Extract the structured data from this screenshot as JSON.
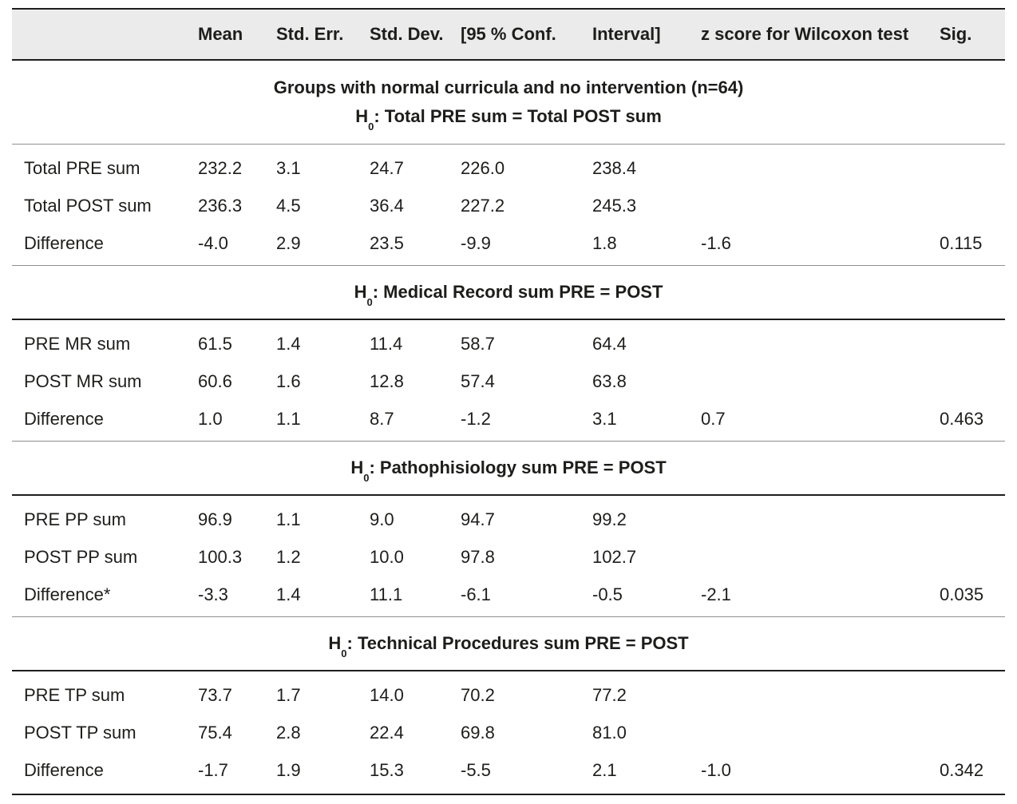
{
  "colors": {
    "header_bg": "#ebebeb",
    "text": "#1d1d1b",
    "rule_gray": "#8f8f8f",
    "rule_black": "#1d1d1b"
  },
  "table": {
    "header": {
      "columns": [
        "Mean",
        "Std. Err.",
        "Std. Dev.",
        "[95 % Conf.",
        "Interval]",
        "z score for Wilcoxon test",
        "Sig."
      ]
    },
    "sections": [
      {
        "group_title": "Groups with normal curricula and no intervention (n=64)",
        "hypothesis": {
          "base": "H",
          "sub": "0",
          "rest": ": Total PRE sum = Total POST sum"
        },
        "rows": [
          {
            "label": "Total PRE sum",
            "values": [
              "232.2",
              "3.1",
              "24.7",
              "226.0",
              "238.4",
              "",
              ""
            ]
          },
          {
            "label": "Total POST sum",
            "values": [
              "236.3",
              "4.5",
              "36.4",
              "227.2",
              "245.3",
              "",
              ""
            ]
          },
          {
            "label": "Difference",
            "values": [
              "-4.0",
              "2.9",
              "23.5",
              "-9.9",
              "1.8",
              "-1.6",
              "0.115"
            ]
          }
        ]
      },
      {
        "group_title": "",
        "hypothesis": {
          "base": "H",
          "sub": "0",
          "rest": ": Medical Record sum PRE = POST"
        },
        "rows": [
          {
            "label": "PRE MR sum",
            "values": [
              "61.5",
              "1.4",
              "11.4",
              "58.7",
              "64.4",
              "",
              ""
            ]
          },
          {
            "label": "POST MR sum",
            "values": [
              "60.6",
              "1.6",
              "12.8",
              "57.4",
              "63.8",
              "",
              ""
            ]
          },
          {
            "label": "Difference",
            "values": [
              "1.0",
              "1.1",
              "8.7",
              "-1.2",
              "3.1",
              "0.7",
              "0.463"
            ]
          }
        ]
      },
      {
        "group_title": "",
        "hypothesis": {
          "base": "H",
          "sub": "0",
          "rest": ": Pathophisiology sum PRE = POST"
        },
        "rows": [
          {
            "label": "PRE PP sum",
            "values": [
              "96.9",
              "1.1",
              "9.0",
              "94.7",
              "99.2",
              "",
              ""
            ]
          },
          {
            "label": "POST PP sum",
            "values": [
              "100.3",
              "1.2",
              "10.0",
              "97.8",
              "102.7",
              "",
              ""
            ]
          },
          {
            "label": "Difference*",
            "values": [
              "-3.3",
              "1.4",
              "11.1",
              "-6.1",
              "-0.5",
              "-2.1",
              "0.035"
            ]
          }
        ]
      },
      {
        "group_title": "",
        "hypothesis": {
          "base": "H",
          "sub": "0",
          "rest": ": Technical Procedures sum PRE = POST"
        },
        "rows": [
          {
            "label": "PRE TP sum",
            "values": [
              "73.7",
              "1.7",
              "14.0",
              "70.2",
              "77.2",
              "",
              ""
            ]
          },
          {
            "label": "POST TP sum",
            "values": [
              "75.4",
              "2.8",
              "22.4",
              "69.8",
              "81.0",
              "",
              ""
            ]
          },
          {
            "label": "Difference",
            "values": [
              "-1.7",
              "1.9",
              "15.3",
              "-5.5",
              "2.1",
              "-1.0",
              "0.342"
            ]
          }
        ]
      }
    ]
  }
}
